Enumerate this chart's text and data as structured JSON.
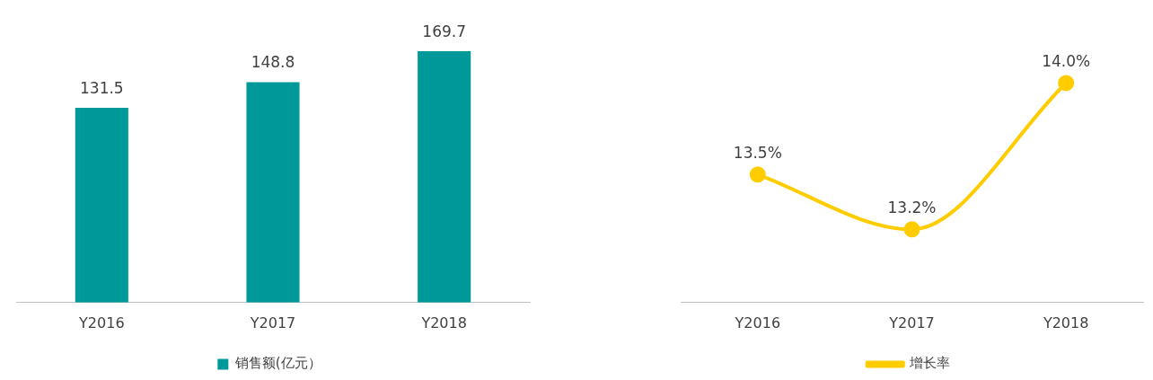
{
  "chart_data": [
    {
      "type": "bar",
      "categories": [
        "Y2016",
        "Y2017",
        "Y2018"
      ],
      "series": [
        {
          "name": "销售额(亿元）",
          "color": "#009999",
          "values": [
            131.5,
            148.8,
            169.7
          ]
        }
      ],
      "tick_labels": "x",
      "grid": false,
      "legend": "bottom",
      "data_labels": true
    },
    {
      "type": "line",
      "categories": [
        "Y2016",
        "Y2017",
        "Y2018"
      ],
      "series": [
        {
          "name": "增长率",
          "color": "#ffcc00",
          "values": [
            13.5,
            13.2,
            14.0
          ],
          "value_labels": [
            "13.5%",
            "13.2%",
            "14.0%"
          ]
        }
      ],
      "tick_labels": "x",
      "grid": false,
      "legend": "bottom",
      "marker": "circle",
      "line_style": "solid"
    }
  ]
}
